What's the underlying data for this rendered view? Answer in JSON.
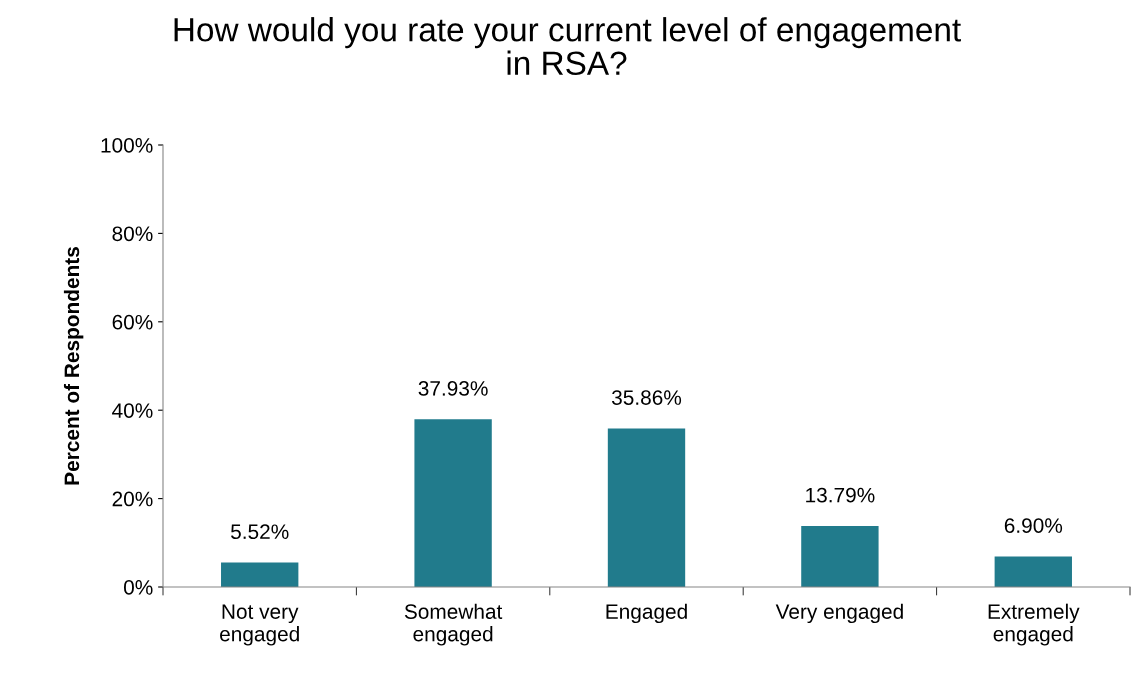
{
  "chart_data": {
    "type": "bar",
    "title": "How would you rate your current level of engagement\nin RSA?",
    "ylabel": "Percent of Respondents",
    "categories": [
      "Not very\nengaged",
      "Somewhat\nengaged",
      "Engaged",
      "Very engaged",
      "Extremely\nengaged"
    ],
    "values": [
      5.52,
      37.93,
      35.86,
      13.79,
      6.9
    ],
    "value_labels": [
      "5.52%",
      "37.93%",
      "35.86%",
      "13.79%",
      "6.90%"
    ],
    "color": "#217b8c",
    "ylim": [
      0,
      100
    ],
    "yticks": [
      {
        "value": 0,
        "label": "0%"
      },
      {
        "value": 20,
        "label": "20%"
      },
      {
        "value": 40,
        "label": "40%"
      },
      {
        "value": 60,
        "label": "60%"
      },
      {
        "value": 80,
        "label": "80%"
      },
      {
        "value": 100,
        "label": "100%"
      }
    ],
    "grid": false,
    "legend": false
  }
}
